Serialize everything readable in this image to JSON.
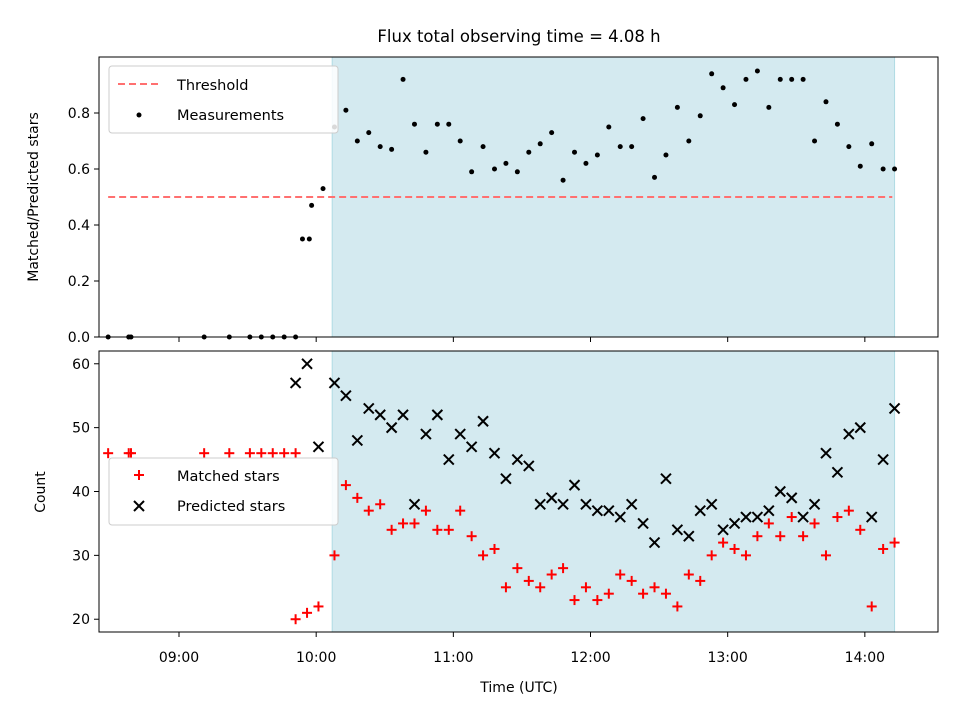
{
  "chart_data": [
    {
      "type": "scatter",
      "title": "Flux total observing time = 4.08 h",
      "xlabel": "",
      "ylabel": "Matched/Predicted stars",
      "ylim": [
        0,
        1.0
      ],
      "yticks": [
        "0.0",
        "0.2",
        "0.4",
        "0.6",
        "0.8"
      ],
      "xlim": [
        "08:25",
        "14:32"
      ],
      "legend_position": "top-left",
      "shaded_interval": {
        "start": "10:07",
        "end": "14:13",
        "color": "#d4eaf0"
      },
      "series": [
        {
          "name": "Threshold",
          "kind": "dashed-line",
          "color": "#ff7070",
          "x": [
            "08:29",
            "14:12"
          ],
          "y": [
            0.5,
            0.5
          ]
        },
        {
          "name": "Measurements",
          "kind": "dot",
          "color": "#000000",
          "x": [
            "08:29",
            "08:38",
            "08:39",
            "09:11",
            "09:22",
            "09:31",
            "09:36",
            "09:41",
            "09:46",
            "09:51",
            "09:57",
            "09:54",
            "09:58",
            "10:03",
            "10:08",
            "10:13",
            "10:18",
            "10:23",
            "10:28",
            "10:33",
            "10:38",
            "10:43",
            "10:48",
            "10:53",
            "10:58",
            "11:03",
            "11:08",
            "11:13",
            "11:18",
            "11:23",
            "11:28",
            "11:33",
            "11:38",
            "11:43",
            "11:48",
            "11:53",
            "11:58",
            "12:03",
            "12:08",
            "12:13",
            "12:18",
            "12:23",
            "12:28",
            "12:33",
            "12:38",
            "12:43",
            "12:48",
            "12:53",
            "12:58",
            "13:03",
            "13:08",
            "13:13",
            "13:18",
            "13:23",
            "13:28",
            "13:33",
            "13:38",
            "13:43",
            "13:48",
            "13:53",
            "13:58",
            "14:03",
            "14:08",
            "14:13"
          ],
          "y": [
            0.0,
            0.0,
            0.0,
            0.0,
            0.0,
            0.0,
            0.0,
            0.0,
            0.0,
            0.0,
            0.35,
            0.35,
            0.47,
            0.53,
            0.75,
            0.81,
            0.7,
            0.73,
            0.68,
            0.67,
            0.92,
            0.76,
            0.66,
            0.76,
            0.76,
            0.7,
            0.59,
            0.68,
            0.6,
            0.62,
            0.59,
            0.66,
            0.69,
            0.73,
            0.56,
            0.66,
            0.62,
            0.65,
            0.75,
            0.68,
            0.68,
            0.78,
            0.57,
            0.65,
            0.82,
            0.7,
            0.79,
            0.94,
            0.89,
            0.83,
            0.92,
            0.95,
            0.82,
            0.92,
            0.92,
            0.92,
            0.7,
            0.84,
            0.76,
            0.68,
            0.61,
            0.69,
            0.6,
            0.6
          ]
        }
      ]
    },
    {
      "type": "scatter",
      "xlabel": "Time (UTC)",
      "ylabel": "Count",
      "ylim": [
        18,
        62
      ],
      "yticks": [
        "20",
        "30",
        "40",
        "50",
        "60"
      ],
      "xticks": [
        "09:00",
        "10:00",
        "11:00",
        "12:00",
        "13:00",
        "14:00"
      ],
      "xlim": [
        "08:25",
        "14:32"
      ],
      "legend_position": "center-left",
      "shaded_interval": {
        "start": "10:07",
        "end": "14:13",
        "color": "#d4eaf0"
      },
      "series": [
        {
          "name": "Matched stars",
          "kind": "plus",
          "color": "#ff0000",
          "x": [
            "08:29",
            "08:38",
            "08:39",
            "09:11",
            "09:22",
            "09:31",
            "09:36",
            "09:41",
            "09:46",
            "09:51",
            "09:51",
            "09:56",
            "10:01",
            "10:08",
            "10:13",
            "10:18",
            "10:23",
            "10:28",
            "10:33",
            "10:38",
            "10:43",
            "10:48",
            "10:53",
            "10:58",
            "11:03",
            "11:08",
            "11:13",
            "11:18",
            "11:23",
            "11:28",
            "11:33",
            "11:38",
            "11:43",
            "11:48",
            "11:53",
            "11:58",
            "12:03",
            "12:08",
            "12:13",
            "12:18",
            "12:23",
            "12:28",
            "12:33",
            "12:38",
            "12:43",
            "12:48",
            "12:53",
            "12:58",
            "13:03",
            "13:08",
            "13:13",
            "13:18",
            "13:23",
            "13:28",
            "13:33",
            "13:38",
            "13:43",
            "13:48",
            "13:53",
            "13:58",
            "14:03",
            "14:08",
            "14:13"
          ],
          "y": [
            46,
            46,
            46,
            46,
            46,
            46,
            46,
            46,
            46,
            46,
            20,
            21,
            22,
            30,
            41,
            39,
            37,
            38,
            34,
            35,
            35,
            37,
            34,
            34,
            37,
            33,
            30,
            31,
            25,
            28,
            26,
            25,
            27,
            28,
            23,
            25,
            23,
            24,
            27,
            26,
            24,
            25,
            24,
            22,
            27,
            26,
            30,
            32,
            31,
            30,
            33,
            35,
            33,
            36,
            33,
            35,
            30,
            36,
            37,
            34,
            22,
            31,
            32
          ]
        },
        {
          "name": "Predicted stars",
          "kind": "x",
          "color": "#000000",
          "x": [
            "09:51",
            "09:56",
            "10:01",
            "10:08",
            "10:13",
            "10:18",
            "10:23",
            "10:28",
            "10:33",
            "10:38",
            "10:43",
            "10:48",
            "10:53",
            "10:58",
            "11:03",
            "11:08",
            "11:13",
            "11:18",
            "11:23",
            "11:28",
            "11:33",
            "11:38",
            "11:43",
            "11:48",
            "11:53",
            "11:58",
            "12:03",
            "12:08",
            "12:13",
            "12:18",
            "12:23",
            "12:28",
            "12:33",
            "12:38",
            "12:43",
            "12:48",
            "12:53",
            "12:58",
            "13:03",
            "13:08",
            "13:13",
            "13:18",
            "13:23",
            "13:28",
            "13:33",
            "13:38",
            "13:43",
            "13:48",
            "13:53",
            "13:58",
            "14:03",
            "14:08",
            "14:13"
          ],
          "y": [
            57,
            60,
            47,
            57,
            55,
            48,
            53,
            52,
            50,
            52,
            38,
            49,
            52,
            45,
            49,
            47,
            51,
            46,
            42,
            45,
            44,
            38,
            39,
            38,
            41,
            38,
            37,
            37,
            36,
            38,
            35,
            32,
            42,
            34,
            33,
            37,
            38,
            34,
            35,
            36,
            36,
            37,
            40,
            39,
            36,
            38,
            46,
            43,
            49,
            50,
            36,
            45,
            53
          ]
        }
      ]
    }
  ]
}
